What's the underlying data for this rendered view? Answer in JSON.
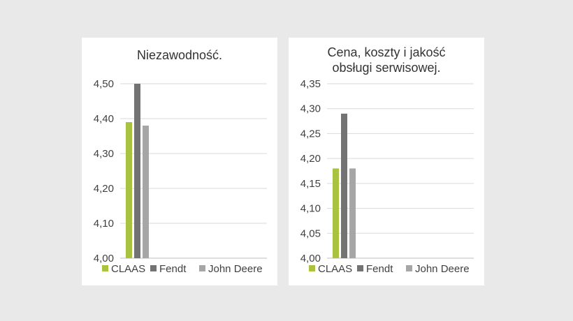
{
  "chart_data": [
    {
      "type": "bar",
      "title": "Niezawodność.",
      "categories": [
        ""
      ],
      "series": [
        {
          "name": "CLAAS",
          "values": [
            4.39
          ],
          "color": "#a9c23f"
        },
        {
          "name": "Fendt",
          "values": [
            4.5
          ],
          "color": "#737373"
        },
        {
          "name": "John Deere",
          "values": [
            4.38
          ],
          "color": "#a6a6a6"
        }
      ],
      "ylim": [
        4.0,
        4.5
      ],
      "yticks": [
        "4,00",
        "4,10",
        "4,20",
        "4,30",
        "4,40",
        "4,50"
      ],
      "grid": true,
      "legend": "bottom"
    },
    {
      "type": "bar",
      "title": "Cena, koszty i jakość obsługi serwisowej.",
      "title_lines": [
        "Cena, koszty i jakość",
        "obsługi serwisowej."
      ],
      "categories": [
        ""
      ],
      "series": [
        {
          "name": "CLAAS",
          "values": [
            4.18
          ],
          "color": "#a9c23f"
        },
        {
          "name": "Fendt",
          "values": [
            4.29
          ],
          "color": "#737373"
        },
        {
          "name": "John Deere",
          "values": [
            4.18
          ],
          "color": "#a6a6a6"
        }
      ],
      "ylim": [
        4.0,
        4.35
      ],
      "yticks": [
        "4,00",
        "4,05",
        "4,10",
        "4,15",
        "4,20",
        "4,25",
        "4,30",
        "4,35"
      ],
      "grid": true,
      "legend": "bottom"
    }
  ]
}
